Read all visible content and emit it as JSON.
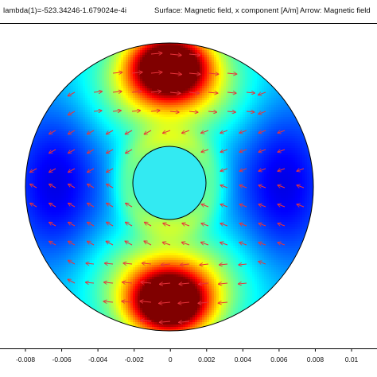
{
  "header": {
    "eigenvalue": "lambda(1)=-523.34246-1.679024e-4i",
    "surface": "Surface: Magnetic field, x component [A/m]",
    "arrow": "Arrow: Magnetic field"
  },
  "x_axis": {
    "ticks": [
      "-0.008",
      "-0.006",
      "-0.004",
      "-0.002",
      "0",
      "0.002",
      "0.004",
      "0.006",
      "0.008",
      "0.01"
    ]
  },
  "colormap": "jet",
  "colors": {
    "arrow": "#e8323a",
    "inner_disk": "#33eaf2",
    "frame": "#000000"
  }
}
